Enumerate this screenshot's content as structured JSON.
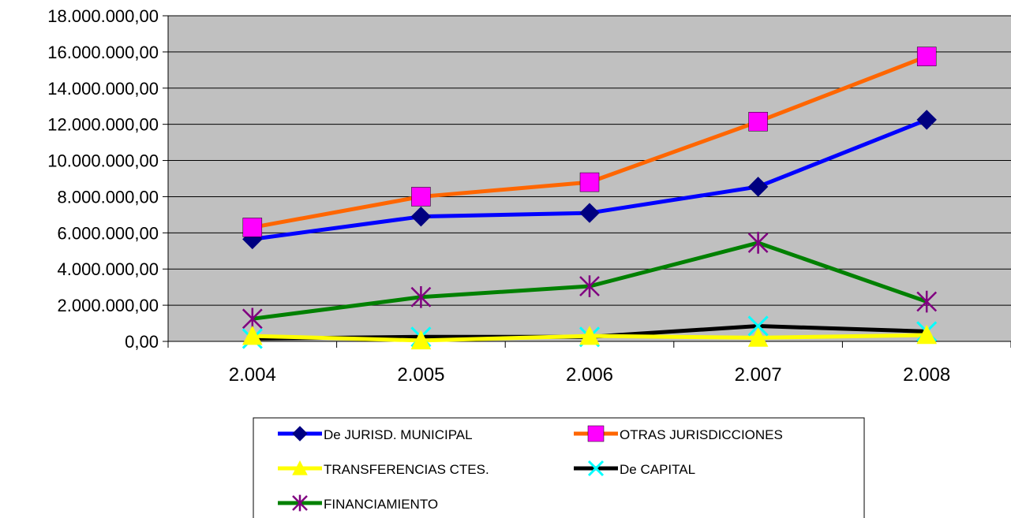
{
  "chart_data": {
    "type": "line",
    "title": "",
    "xlabel": "",
    "ylabel": "",
    "categories": [
      "2.004",
      "2.005",
      "2.006",
      "2.007",
      "2.008"
    ],
    "ylim": [
      0,
      18000000
    ],
    "y_ticks": [
      0,
      2000000,
      4000000,
      6000000,
      8000000,
      10000000,
      12000000,
      14000000,
      16000000,
      18000000
    ],
    "y_tick_labels": [
      "0,00",
      "2.000.000,00",
      "4.000.000,00",
      "6.000.000,00",
      "8.000.000,00",
      "10.000.000,00",
      "12.000.000,00",
      "14.000.000,00",
      "16.000.000,00",
      "18.000.000,00"
    ],
    "grid": true,
    "plot_background": "#c0c0c0",
    "legend_position": "bottom",
    "series": [
      {
        "name": "De JURISD. MUNICIPAL",
        "values": [
          5650000,
          6900000,
          7100000,
          8550000,
          12250000
        ],
        "color": "#0000ff",
        "marker": "diamond",
        "marker_color": "#000080"
      },
      {
        "name": "OTRAS JURISDICCIONES",
        "values": [
          6300000,
          8000000,
          8800000,
          12150000,
          15750000
        ],
        "color": "#ff6600",
        "marker": "square",
        "marker_color": "#ff00ff"
      },
      {
        "name": "TRANSFERENCIAS CTES.",
        "values": [
          300000,
          50000,
          300000,
          200000,
          350000
        ],
        "color": "#ffff00",
        "marker": "triangle",
        "marker_color": "#ffff00"
      },
      {
        "name": "De CAPITAL",
        "values": [
          150000,
          250000,
          250000,
          850000,
          550000
        ],
        "color": "#000000",
        "marker": "x",
        "marker_color": "#00ffff"
      },
      {
        "name": "FINANCIAMIENTO",
        "values": [
          1250000,
          2450000,
          3050000,
          5450000,
          2200000
        ],
        "color": "#008000",
        "marker": "star",
        "marker_color": "#800080"
      }
    ]
  }
}
